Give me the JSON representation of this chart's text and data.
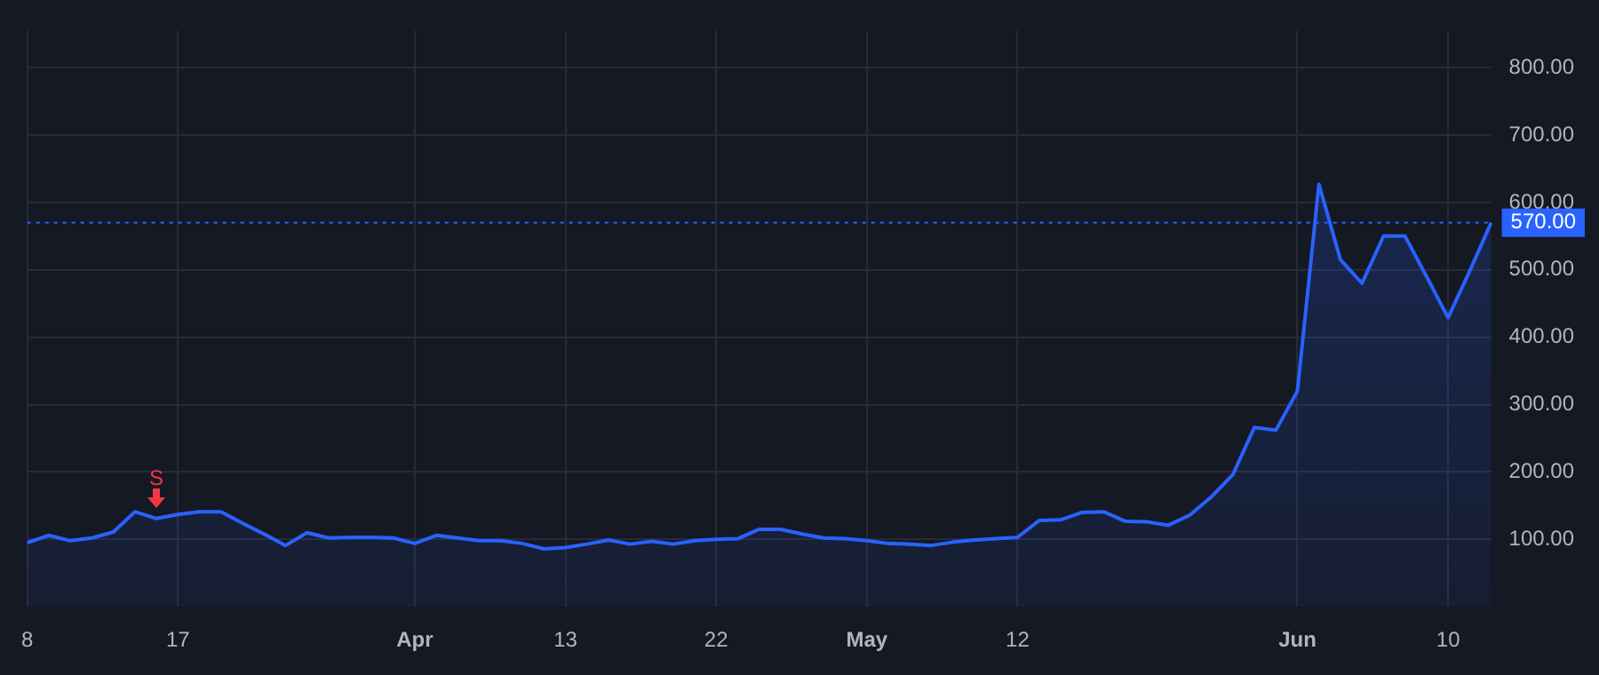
{
  "chart_data": {
    "type": "area",
    "categories": [
      "8",
      null,
      null,
      null,
      null,
      null,
      null,
      "17",
      null,
      null,
      null,
      null,
      null,
      null,
      null,
      null,
      null,
      null,
      "Apr",
      null,
      null,
      null,
      null,
      null,
      null,
      "13",
      null,
      null,
      null,
      null,
      null,
      null,
      "22",
      null,
      null,
      null,
      null,
      null,
      null,
      "May",
      null,
      null,
      null,
      null,
      null,
      null,
      "12",
      null,
      null,
      null,
      null,
      null,
      null,
      null,
      null,
      null,
      null,
      null,
      null,
      "Jun",
      null,
      null,
      null,
      null,
      null,
      null,
      "10",
      null,
      null
    ],
    "series": [
      {
        "color": "#2962ff",
        "values": [
          95,
          106,
          98,
          102,
          111,
          141,
          131,
          137,
          141,
          141,
          124,
          108,
          91,
          110,
          102,
          103,
          103,
          102,
          94,
          106,
          102,
          98,
          98,
          94,
          86,
          88,
          93,
          99,
          93,
          97,
          93,
          98,
          100,
          101,
          115,
          115,
          108,
          102,
          101,
          98,
          94,
          93,
          91,
          96,
          99,
          101,
          103,
          128,
          129,
          140,
          141,
          127,
          126,
          121,
          136,
          163,
          196,
          266,
          262,
          320,
          627,
          515,
          480,
          550,
          550,
          490,
          429,
          498,
          570
        ]
      }
    ],
    "ylim": [
      0,
      855
    ],
    "yticks": [
      {
        "value": 100,
        "label": "100.00"
      },
      {
        "value": 200,
        "label": "200.00"
      },
      {
        "value": 300,
        "label": "300.00"
      },
      {
        "value": 400,
        "label": "400.00"
      },
      {
        "value": 500,
        "label": "500.00"
      },
      {
        "value": 600,
        "label": "600.00"
      },
      {
        "value": 700,
        "label": "700.00"
      },
      {
        "value": 800,
        "label": "800.00"
      }
    ],
    "grid": true,
    "legend": false,
    "marker": "none",
    "line_style": "solid",
    "ref_lines": [
      {
        "axis": "y",
        "value": 570,
        "label": "570.00",
        "color": "#2962ff",
        "line_style": "dotted"
      }
    ],
    "annotations": [
      "S"
    ]
  }
}
